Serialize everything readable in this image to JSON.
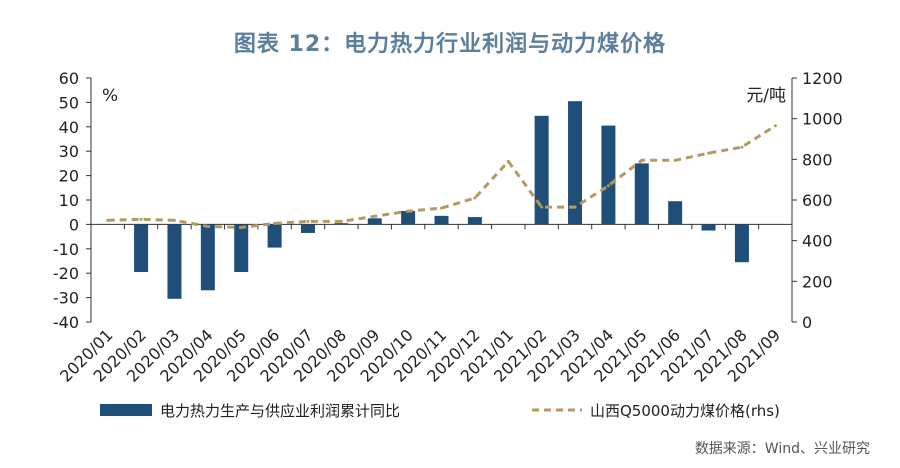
{
  "title": "图表 12：电力热力行业利润与动力煤价格",
  "source": "数据来源：Wind、兴业研究",
  "colors": {
    "bar": "#1f4e79",
    "line": "#b49a5e",
    "title": "#5b7f9c",
    "axis": "#333333"
  },
  "chart_data": {
    "type": "bar",
    "categories": [
      "2020/01",
      "2020/02",
      "2020/03",
      "2020/04",
      "2020/05",
      "2020/06",
      "2020/07",
      "2020/08",
      "2020/09",
      "2020/10",
      "2020/11",
      "2020/12",
      "2021/01",
      "2021/02",
      "2021/03",
      "2021/04",
      "2021/05",
      "2021/06",
      "2021/07",
      "2021/08",
      "2021/09"
    ],
    "y_left": {
      "label": "%",
      "ylim": [
        -40,
        60
      ],
      "ticks": [
        -40,
        -30,
        -20,
        -10,
        0,
        10,
        20,
        30,
        40,
        50,
        60
      ]
    },
    "y_right": {
      "label": "元/吨",
      "ylim": [
        0,
        1200
      ],
      "ticks": [
        0,
        200,
        400,
        600,
        800,
        1000,
        1200
      ]
    },
    "series": [
      {
        "name": "电力热力生产与供应业利润累计同比",
        "type": "bar",
        "axis": "left",
        "values": [
          null,
          -19.5,
          -30.5,
          -27,
          -19.5,
          -9.5,
          -3.5,
          0.5,
          2.5,
          5.5,
          3.5,
          3,
          null,
          44.5,
          50.5,
          40.5,
          25,
          9.5,
          -2.5,
          -15.5,
          null
        ]
      },
      {
        "name": "山西Q5000动力煤价格(rhs)",
        "type": "line",
        "style": "dashed",
        "axis": "right",
        "values": [
          500,
          505,
          500,
          470,
          465,
          485,
          495,
          495,
          520,
          545,
          560,
          610,
          790,
          565,
          565,
          670,
          795,
          795,
          830,
          860,
          965
        ]
      }
    ],
    "grid": false,
    "legend": "bottom"
  }
}
